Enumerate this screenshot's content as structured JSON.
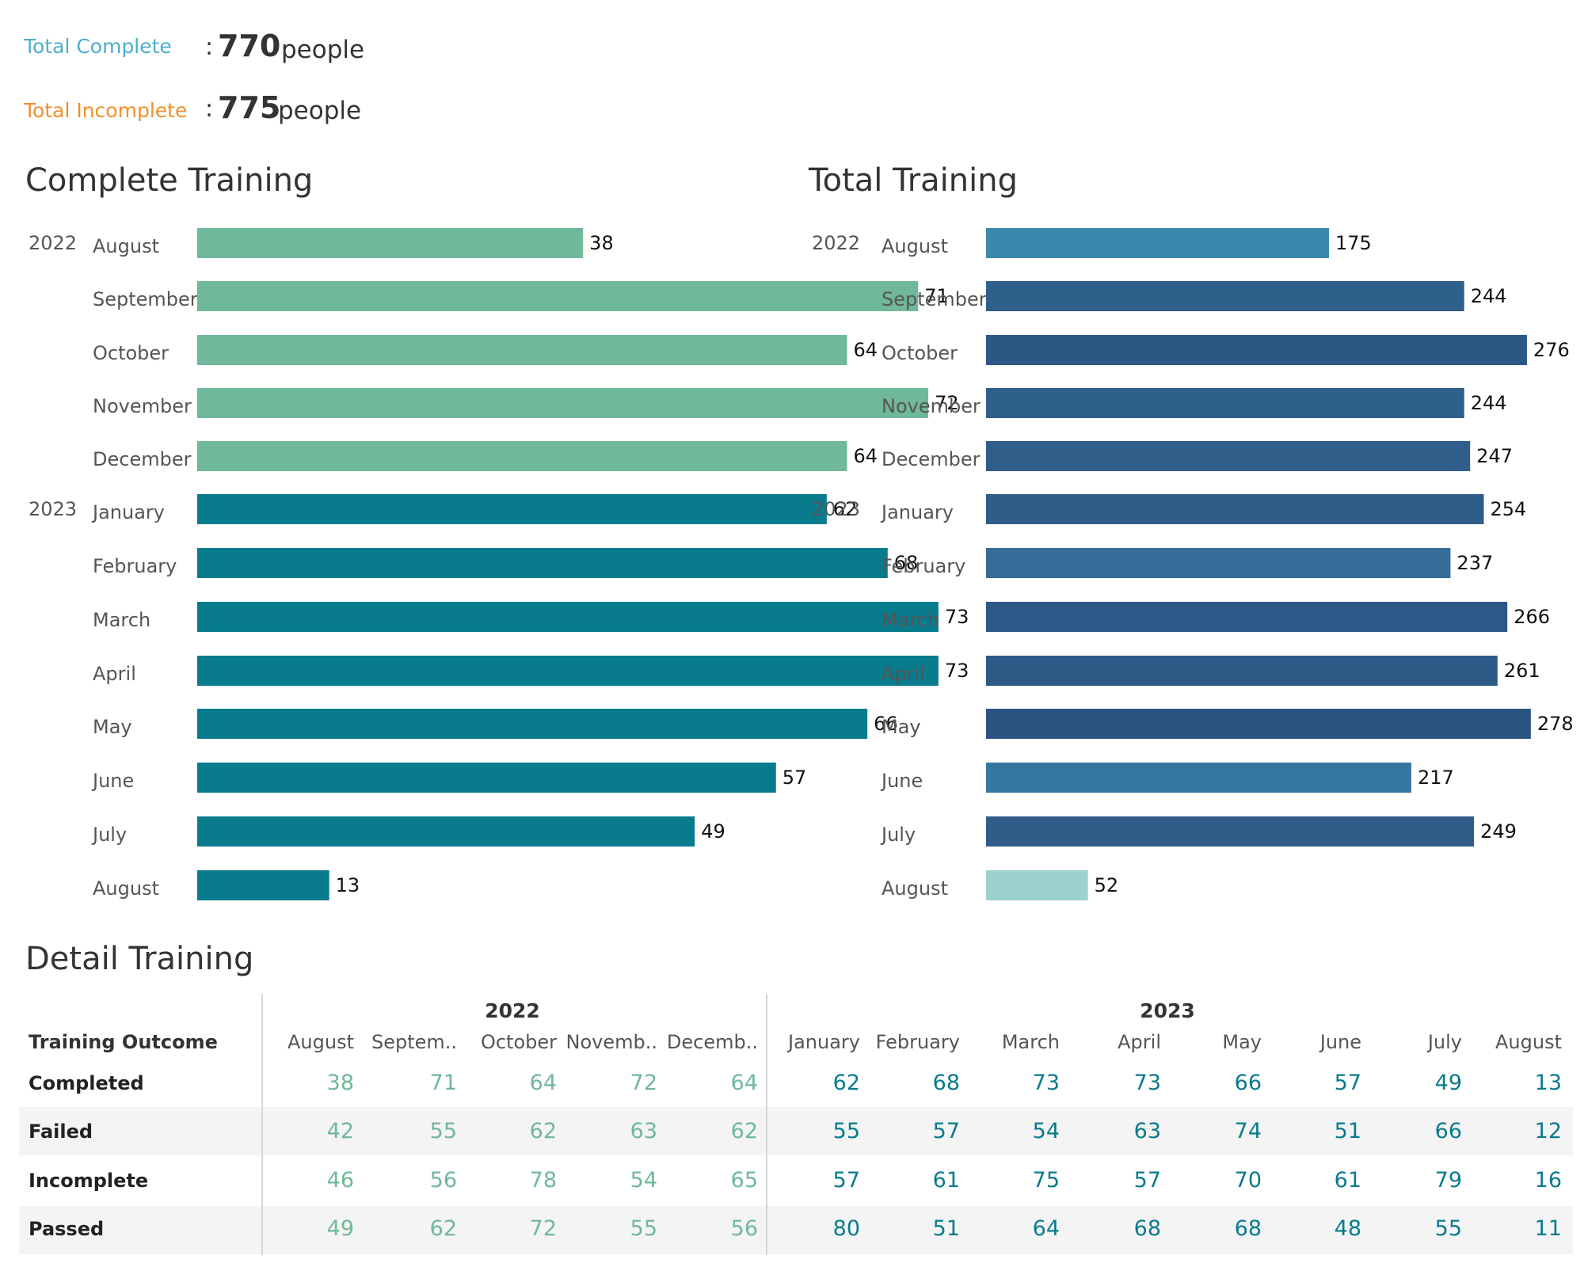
{
  "summary": {
    "complete": {
      "label": "Total Complete",
      "sep": ":",
      "value": "770",
      "unit": "people",
      "color": "#4eaecb"
    },
    "incomplete": {
      "label": "Total Incomplete",
      "sep": ":",
      "value": "775",
      "unit": "people",
      "color": "#f28e2b"
    }
  },
  "chart_data": [
    {
      "type": "bar",
      "orientation": "horizontal",
      "title": "Complete Training",
      "years": [
        "2022",
        "2023"
      ],
      "categories": [
        "August",
        "September",
        "October",
        "November",
        "December",
        "January",
        "February",
        "March",
        "April",
        "May",
        "June",
        "July",
        "August"
      ],
      "category_years": [
        "2022",
        "2022",
        "2022",
        "2022",
        "2022",
        "2023",
        "2023",
        "2023",
        "2023",
        "2023",
        "2023",
        "2023",
        "2023"
      ],
      "values": [
        38,
        71,
        64,
        72,
        64,
        62,
        68,
        73,
        73,
        66,
        57,
        49,
        13
      ],
      "colors": [
        "#6fb899",
        "#6fb899",
        "#6fb899",
        "#6fb899",
        "#6fb899",
        "#087b8d",
        "#087b8d",
        "#087b8d",
        "#087b8d",
        "#087b8d",
        "#087b8d",
        "#087b8d",
        "#087b8d"
      ],
      "xlim": [
        0,
        78
      ],
      "grid": false
    },
    {
      "type": "bar",
      "orientation": "horizontal",
      "title": "Total Training",
      "years": [
        "2022",
        "2023"
      ],
      "categories": [
        "August",
        "September",
        "October",
        "November",
        "December",
        "January",
        "February",
        "March",
        "April",
        "May",
        "June",
        "July",
        "August"
      ],
      "category_years": [
        "2022",
        "2022",
        "2022",
        "2022",
        "2022",
        "2023",
        "2023",
        "2023",
        "2023",
        "2023",
        "2023",
        "2023",
        "2023"
      ],
      "values": [
        175,
        244,
        276,
        244,
        247,
        254,
        237,
        266,
        261,
        278,
        217,
        249,
        52
      ],
      "colors": [
        "#3a89ac",
        "#2f5f8b",
        "#2c5684",
        "#2f5f8b",
        "#2f5e8a",
        "#2f5c88",
        "#356c98",
        "#2c5786",
        "#2d5987",
        "#2b5483",
        "#3677a2",
        "#2f5c89",
        "#9bd2d0"
      ],
      "xlim": [
        0,
        293
      ],
      "grid": false
    },
    {
      "type": "table",
      "title": "Detail Training",
      "row_header": "Training Outcome",
      "years": [
        {
          "label": "2022",
          "months": [
            "August",
            "Septem..",
            "October",
            "Novemb..",
            "Decemb.."
          ]
        },
        {
          "label": "2023",
          "months": [
            "January",
            "February",
            "March",
            "April",
            "May",
            "June",
            "July",
            "August"
          ]
        }
      ],
      "rows": [
        {
          "label": "Completed",
          "values": [
            38,
            71,
            64,
            72,
            64,
            62,
            68,
            73,
            73,
            66,
            57,
            49,
            13
          ]
        },
        {
          "label": "Failed",
          "values": [
            42,
            55,
            62,
            63,
            62,
            55,
            57,
            54,
            63,
            74,
            51,
            66,
            12
          ]
        },
        {
          "label": "Incomplete",
          "values": [
            46,
            56,
            78,
            54,
            65,
            57,
            61,
            75,
            57,
            70,
            61,
            79,
            16
          ]
        },
        {
          "label": "Passed",
          "values": [
            49,
            62,
            72,
            55,
            56,
            80,
            51,
            64,
            68,
            68,
            48,
            55,
            11
          ]
        }
      ],
      "colors": {
        "2022": "#6fb899",
        "2023": "#087b8d"
      }
    }
  ]
}
